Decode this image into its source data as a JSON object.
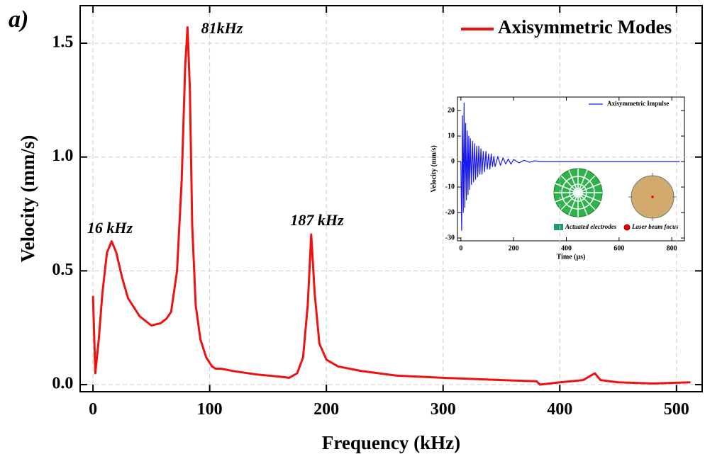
{
  "chart_data": [
    {
      "type": "line",
      "panel_label": "a)",
      "xlabel": "Frequency (kHz)",
      "ylabel": "Velocity (mm/s)",
      "x": [
        0,
        2,
        5,
        8,
        12,
        16,
        20,
        25,
        30,
        40,
        50,
        58,
        63,
        67,
        72,
        76,
        79,
        81,
        83,
        85,
        88,
        92,
        97,
        102,
        105,
        110,
        120,
        140,
        160,
        168,
        175,
        180,
        184,
        187,
        190,
        194,
        200,
        210,
        230,
        260,
        300,
        350,
        380,
        383,
        400,
        420,
        430,
        435,
        450,
        480,
        512
      ],
      "series": [
        {
          "name": "Axisymmetric Modes",
          "color": "#ee1111",
          "values": [
            0.39,
            0.05,
            0.2,
            0.4,
            0.58,
            0.63,
            0.58,
            0.47,
            0.38,
            0.3,
            0.26,
            0.27,
            0.29,
            0.32,
            0.5,
            0.9,
            1.4,
            1.57,
            1.3,
            0.7,
            0.35,
            0.2,
            0.12,
            0.08,
            0.07,
            0.07,
            0.06,
            0.045,
            0.035,
            0.03,
            0.05,
            0.12,
            0.35,
            0.66,
            0.4,
            0.18,
            0.11,
            0.08,
            0.06,
            0.04,
            0.03,
            0.02,
            0.015,
            0.0,
            0.01,
            0.02,
            0.05,
            0.02,
            0.01,
            0.005,
            0.01
          ]
        }
      ],
      "xlim": [
        -11,
        522
      ],
      "ylim": [
        -0.031,
        1.665
      ],
      "xticks": [
        0,
        100,
        200,
        300,
        400,
        500
      ],
      "yticks": [
        {
          "value": 0,
          "label": "0.0"
        },
        {
          "value": 0.5,
          "label": "0.5"
        },
        {
          "value": 1,
          "label": "1.0"
        },
        {
          "value": 1.5,
          "label": "1.5"
        }
      ],
      "grid": true,
      "legend": "upper right",
      "annotations": [
        "81kHz",
        "16 kHz",
        "187 kHz"
      ]
    },
    {
      "type": "line",
      "xlabel": "Time (μs)",
      "ylabel": "Velocity (mm/s)",
      "x": [
        0,
        3,
        6,
        9,
        12,
        15,
        18,
        21,
        24,
        27,
        30,
        33,
        36,
        40,
        44,
        48,
        52,
        56,
        60,
        64,
        68,
        72,
        76,
        80,
        85,
        90,
        95,
        100,
        105,
        110,
        115,
        120,
        125,
        130,
        140,
        150,
        160,
        170,
        180,
        190,
        200,
        220,
        240,
        260,
        280,
        300,
        830
      ],
      "series": [
        {
          "name": "Axisymmetric Impulse",
          "color": "#1a1aee",
          "values": [
            0,
            -27,
            18,
            -20,
            23,
            -18,
            15,
            -15,
            12,
            -13,
            10,
            -11,
            9,
            -9,
            8,
            -8,
            7,
            -7,
            6,
            -6,
            6,
            -5,
            5,
            -5,
            4,
            -4,
            4,
            -3,
            3,
            -3,
            3,
            -2,
            2,
            -2,
            2,
            -1.5,
            1.5,
            -1,
            1,
            -1,
            0.8,
            -0.5,
            0.5,
            -0.3,
            0.3,
            0,
            0
          ]
        }
      ],
      "xlim": [
        -13,
        848
      ],
      "ylim": [
        -31.1,
        25.3
      ],
      "xticks": [
        0,
        200,
        400,
        600,
        800
      ],
      "yticks": [
        -30,
        -20,
        -10,
        0,
        10,
        20
      ],
      "grid": false,
      "legend": "upper right",
      "electrode_legend": [
        "Actuated electrodes",
        "Laser beam focus"
      ]
    }
  ]
}
